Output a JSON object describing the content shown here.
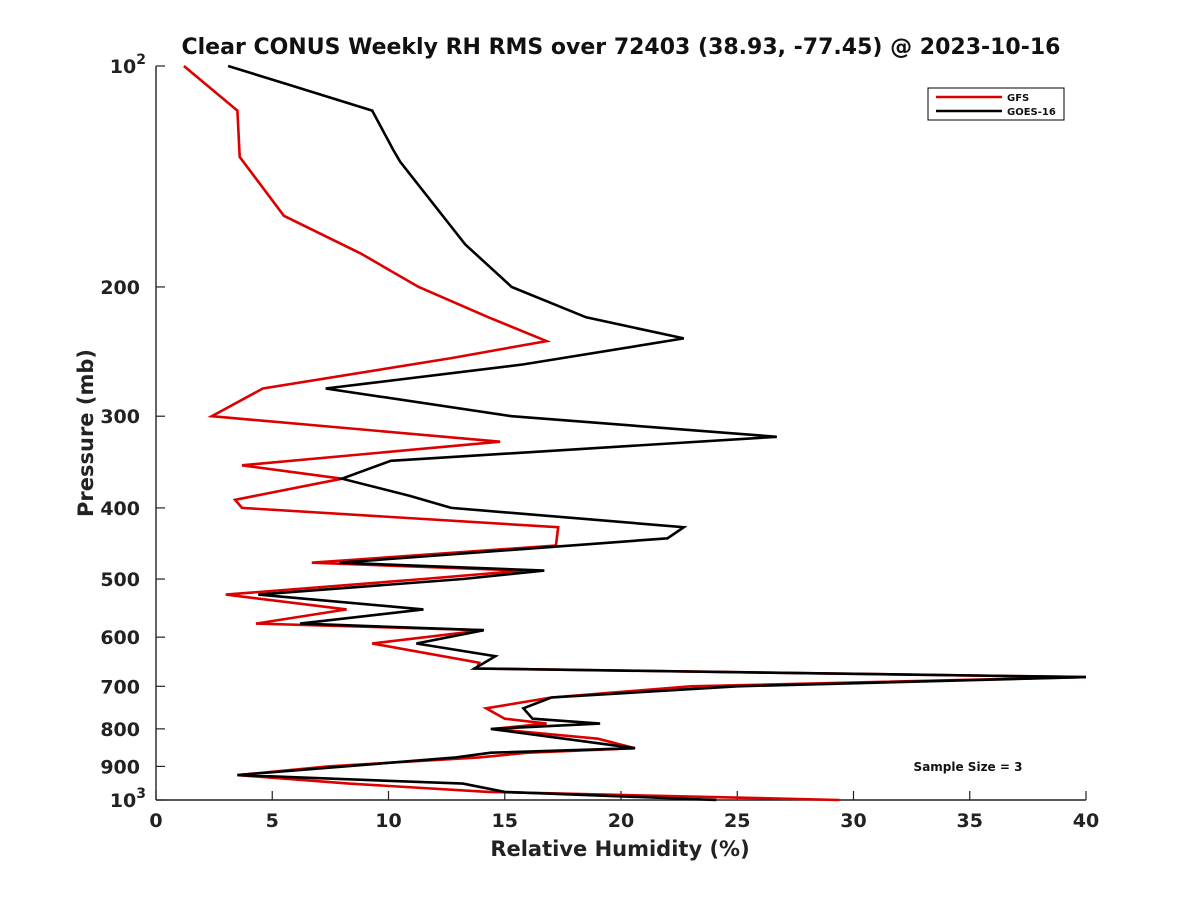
{
  "chart_data": {
    "type": "line",
    "title": "Clear CONUS Weekly RH RMS over 72403 (38.93, -77.45) @ 2023-10-16",
    "xlabel": "Relative Humidity (%)",
    "ylabel": "Pressure (mb)",
    "xlim": [
      0,
      40
    ],
    "ylim": [
      100,
      1000
    ],
    "y_scale": "log",
    "y_reversed": true,
    "grid": false,
    "legend_position": "top-right",
    "x_ticks": [
      "0",
      "5",
      "10",
      "15",
      "20",
      "25",
      "30",
      "35",
      "40"
    ],
    "x_tick_values": [
      0,
      5,
      10,
      15,
      20,
      25,
      30,
      35,
      40
    ],
    "y_ticks": [
      {
        "value": 100,
        "base": "10",
        "exp": "2"
      },
      {
        "value": 200,
        "label": "200"
      },
      {
        "value": 300,
        "label": "300"
      },
      {
        "value": 400,
        "label": "400"
      },
      {
        "value": 500,
        "label": "500"
      },
      {
        "value": 600,
        "label": "600"
      },
      {
        "value": 700,
        "label": "700"
      },
      {
        "value": 800,
        "label": "800"
      },
      {
        "value": 900,
        "label": "900"
      },
      {
        "value": 1000,
        "base": "10",
        "exp": "3"
      }
    ],
    "annotation": "Sample Size = 3",
    "series": [
      {
        "name": "GFS",
        "color": "#dd0000",
        "points": [
          [
            1.2,
            100
          ],
          [
            3.5,
            115
          ],
          [
            3.6,
            133
          ],
          [
            5.5,
            160
          ],
          [
            8.8,
            180
          ],
          [
            11.3,
            200
          ],
          [
            14.3,
            220
          ],
          [
            16.8,
            237
          ],
          [
            12.7,
            250
          ],
          [
            4.6,
            275
          ],
          [
            2.4,
            300
          ],
          [
            14.8,
            325
          ],
          [
            3.7,
            350
          ],
          [
            8.0,
            365
          ],
          [
            3.4,
            390
          ],
          [
            3.7,
            400
          ],
          [
            17.3,
            425
          ],
          [
            17.2,
            450
          ],
          [
            6.7,
            475
          ],
          [
            15.8,
            487
          ],
          [
            11.5,
            500
          ],
          [
            3.0,
            525
          ],
          [
            8.2,
            550
          ],
          [
            4.3,
            575
          ],
          [
            14.1,
            587
          ],
          [
            9.3,
            612
          ],
          [
            10.9,
            625
          ],
          [
            13.9,
            650
          ],
          [
            13.8,
            662
          ],
          [
            40.0,
            680
          ],
          [
            23.0,
            700
          ],
          [
            17.0,
            725
          ],
          [
            14.2,
            750
          ],
          [
            15.0,
            775
          ],
          [
            16.8,
            787
          ],
          [
            14.5,
            800
          ],
          [
            19.0,
            825
          ],
          [
            20.6,
            850
          ],
          [
            16.0,
            862
          ],
          [
            13.9,
            875
          ],
          [
            7.4,
            900
          ],
          [
            3.5,
            925
          ],
          [
            8.3,
            950
          ],
          [
            14.3,
            975
          ],
          [
            29.4,
            1000
          ]
        ]
      },
      {
        "name": "GOES-16",
        "color": "#000000",
        "points": [
          [
            3.1,
            100
          ],
          [
            5.7,
            106
          ],
          [
            9.3,
            115
          ],
          [
            10.2,
            130
          ],
          [
            10.5,
            135
          ],
          [
            13.3,
            175
          ],
          [
            15.3,
            200
          ],
          [
            18.5,
            220
          ],
          [
            22.7,
            235
          ],
          [
            15.8,
            255
          ],
          [
            7.3,
            275
          ],
          [
            15.3,
            300
          ],
          [
            26.7,
            320
          ],
          [
            10.1,
            345
          ],
          [
            8.0,
            365
          ],
          [
            10.9,
            385
          ],
          [
            12.7,
            400
          ],
          [
            22.7,
            425
          ],
          [
            22.0,
            440
          ],
          [
            7.9,
            475
          ],
          [
            16.7,
            487
          ],
          [
            13.2,
            500
          ],
          [
            4.4,
            525
          ],
          [
            11.5,
            550
          ],
          [
            6.2,
            575
          ],
          [
            14.1,
            587
          ],
          [
            11.2,
            612
          ],
          [
            14.6,
            637
          ],
          [
            13.7,
            662
          ],
          [
            40.0,
            680
          ],
          [
            25.0,
            700
          ],
          [
            17.0,
            725
          ],
          [
            15.8,
            750
          ],
          [
            16.2,
            775
          ],
          [
            19.1,
            787
          ],
          [
            14.4,
            800
          ],
          [
            20.6,
            850
          ],
          [
            14.4,
            862
          ],
          [
            12.9,
            875
          ],
          [
            3.5,
            925
          ],
          [
            13.2,
            950
          ],
          [
            15.0,
            975
          ],
          [
            24.1,
            1000
          ]
        ]
      }
    ]
  }
}
